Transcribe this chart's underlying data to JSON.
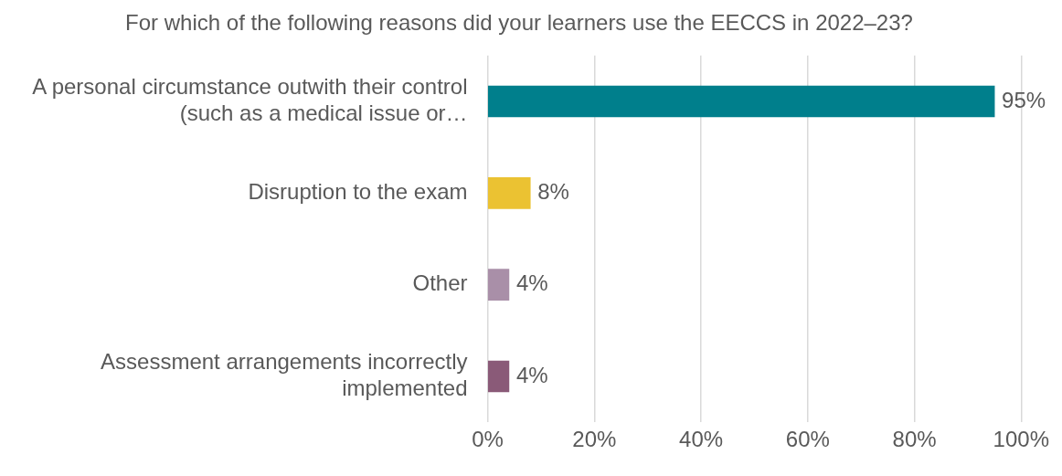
{
  "chart_data": {
    "type": "bar",
    "orientation": "horizontal",
    "title": "For which of the following reasons did your learners use the EECCS in 2022–23?",
    "categories": [
      "A personal circumstance outwith their control (such as a medical issue or…",
      "Disruption to the exam",
      "Other",
      "Assessment arrangements incorrectly implemented"
    ],
    "values": [
      95,
      8,
      4,
      4
    ],
    "colors": [
      "#007f8c",
      "#ebc232",
      "#a98fa8",
      "#8a5a78"
    ],
    "value_labels": [
      "95%",
      "8%",
      "4%",
      "4%"
    ],
    "xlim": [
      0,
      100
    ],
    "xticks": [
      {
        "value": 0,
        "label": "0%"
      },
      {
        "value": 20,
        "label": "20%"
      },
      {
        "value": 40,
        "label": "40%"
      },
      {
        "value": 60,
        "label": "60%"
      },
      {
        "value": 80,
        "label": "80%"
      },
      {
        "value": 100,
        "label": "100%"
      }
    ],
    "grid": "x",
    "legend": false
  }
}
